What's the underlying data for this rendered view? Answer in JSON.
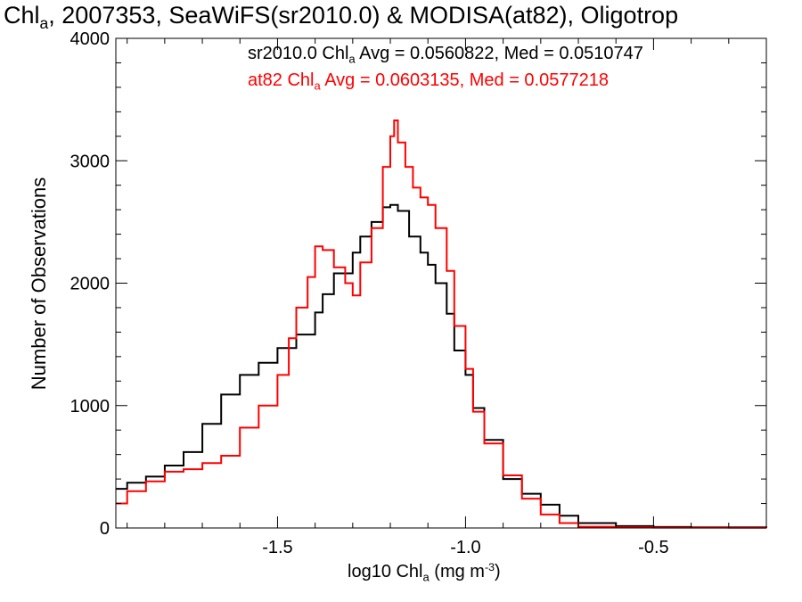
{
  "title": {
    "prefix": "Chl",
    "sub": "a",
    "rest": ", 2007353, SeaWiFS(sr2010.0) & MODISA(at82), Oligotrop"
  },
  "stats": {
    "sr2010": {
      "prefix": "sr2010.0 Chl",
      "sub": "a",
      "rest": " Avg = 0.0560822, Med = 0.0510747"
    },
    "at82": {
      "prefix": "at82 Chl",
      "sub": "a",
      "rest": " Avg = 0.0603135, Med = 0.0577218"
    }
  },
  "axes": {
    "xlabel": {
      "prefix": "log10 Chl",
      "sub": "a",
      "unit": " (mg m",
      "sup": "-3",
      "close": ")"
    },
    "ylabel": "Number of Observations"
  },
  "colors": {
    "sr2010": "#000000",
    "at82": "#ff0000"
  },
  "chart_data": {
    "type": "line",
    "step": true,
    "xlim": [
      -1.93,
      -0.2
    ],
    "ylim": [
      0,
      4000
    ],
    "xticks": [
      -1.5,
      -1.0,
      -0.5
    ],
    "xtick_labels": [
      "-1.5",
      "-1.0",
      "-0.5"
    ],
    "yticks": [
      0,
      1000,
      2000,
      3000,
      4000
    ],
    "ytick_labels": [
      "0",
      "1000",
      "2000",
      "3000",
      "4000"
    ],
    "grid": false,
    "series": [
      {
        "name": "sr2010.0 Chl a",
        "color": "#000000",
        "x": [
          -1.93,
          -1.9,
          -1.85,
          -1.8,
          -1.75,
          -1.7,
          -1.65,
          -1.6,
          -1.55,
          -1.5,
          -1.45,
          -1.4,
          -1.38,
          -1.35,
          -1.3,
          -1.28,
          -1.25,
          -1.22,
          -1.2,
          -1.18,
          -1.15,
          -1.12,
          -1.1,
          -1.08,
          -1.05,
          -1.03,
          -1.0,
          -0.98,
          -0.95,
          -0.9,
          -0.85,
          -0.8,
          -0.75,
          -0.7,
          -0.6,
          -0.5,
          -0.4,
          -0.2
        ],
        "y": [
          320,
          370,
          420,
          510,
          620,
          850,
          1090,
          1250,
          1350,
          1470,
          1580,
          1760,
          1910,
          2080,
          2250,
          2380,
          2500,
          2620,
          2640,
          2590,
          2380,
          2250,
          2150,
          2000,
          1750,
          1450,
          1250,
          980,
          720,
          400,
          280,
          190,
          100,
          40,
          15,
          8,
          5,
          3
        ]
      },
      {
        "name": "at82 Chl a",
        "color": "#ff0000",
        "x": [
          -1.93,
          -1.9,
          -1.85,
          -1.8,
          -1.75,
          -1.7,
          -1.65,
          -1.6,
          -1.55,
          -1.5,
          -1.47,
          -1.45,
          -1.42,
          -1.4,
          -1.38,
          -1.35,
          -1.32,
          -1.3,
          -1.28,
          -1.25,
          -1.22,
          -1.2,
          -1.19,
          -1.18,
          -1.16,
          -1.14,
          -1.12,
          -1.1,
          -1.08,
          -1.05,
          -1.03,
          -1.0,
          -0.98,
          -0.95,
          -0.9,
          -0.85,
          -0.8,
          -0.75,
          -0.7,
          -0.6,
          -0.5,
          -0.3,
          -0.2
        ],
        "y": [
          200,
          300,
          380,
          460,
          480,
          530,
          590,
          820,
          1000,
          1250,
          1550,
          1800,
          2050,
          2300,
          2270,
          2130,
          2000,
          1900,
          2170,
          2450,
          2950,
          3200,
          3330,
          3150,
          2950,
          2780,
          2700,
          2640,
          2450,
          2100,
          1650,
          1300,
          950,
          690,
          430,
          240,
          110,
          40,
          10,
          5,
          3,
          2,
          1
        ]
      }
    ]
  }
}
